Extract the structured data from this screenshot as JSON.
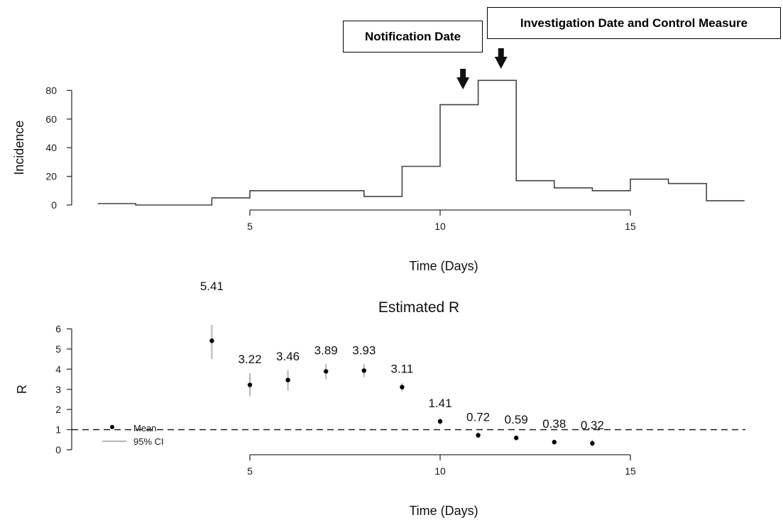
{
  "annotations": {
    "notification": "Notification Date",
    "investigation": "Investigation Date and Control Measure"
  },
  "chart_data": [
    {
      "type": "line",
      "title": "",
      "xlabel": "Time (Days)",
      "ylabel": "Incidence",
      "step": true,
      "x_start": 1,
      "x_step": 1,
      "values": [
        1,
        0,
        0,
        5,
        10,
        10,
        10,
        6,
        27,
        70,
        87,
        17,
        12,
        10,
        18,
        15,
        3
      ],
      "xlim": [
        1,
        18
      ],
      "ylim": [
        0,
        87
      ],
      "xticks": [
        "5",
        "10",
        "15"
      ],
      "yticks": [
        "0",
        "20",
        "40",
        "60",
        "80"
      ],
      "xtick_values": [
        5,
        10,
        15
      ],
      "ytick_values": [
        0,
        20,
        40,
        60,
        80
      ],
      "events": [
        {
          "label": "Notification Date",
          "x": 10.6
        },
        {
          "label": "Investigation Date and Control Measure",
          "x": 11.6
        }
      ]
    },
    {
      "type": "scatter",
      "title": "Estimated R",
      "xlabel": "Time (Days)",
      "ylabel": "R",
      "x": [
        4,
        5,
        6,
        7,
        8,
        9,
        10,
        11,
        12,
        13,
        14
      ],
      "mean": [
        5.41,
        3.22,
        3.46,
        3.89,
        3.93,
        3.11,
        1.41,
        0.72,
        0.59,
        0.38,
        0.32
      ],
      "ci_low": [
        4.5,
        2.65,
        2.95,
        3.5,
        3.6,
        2.9,
        1.25,
        0.58,
        0.47,
        0.27,
        0.15
      ],
      "ci_high": [
        6.2,
        3.8,
        3.95,
        4.25,
        4.25,
        3.3,
        1.55,
        0.86,
        0.71,
        0.5,
        0.5
      ],
      "value_labels": [
        "5.41",
        "3.22",
        "3.46",
        "3.89",
        "3.93",
        "3.11",
        "1.41",
        "0.72",
        "0.59",
        "0.38",
        "0.32"
      ],
      "reference_line": 1,
      "xlim": [
        1,
        18
      ],
      "ylim": [
        0,
        6
      ],
      "xticks": [
        "5",
        "10",
        "15"
      ],
      "yticks": [
        "0",
        "1",
        "2",
        "3",
        "4",
        "5",
        "6"
      ],
      "xtick_values": [
        5,
        10,
        15
      ],
      "ytick_values": [
        0,
        1,
        2,
        3,
        4,
        5,
        6
      ],
      "legend": {
        "position": "left",
        "entries": [
          "Mean",
          "95% CI"
        ]
      }
    }
  ]
}
